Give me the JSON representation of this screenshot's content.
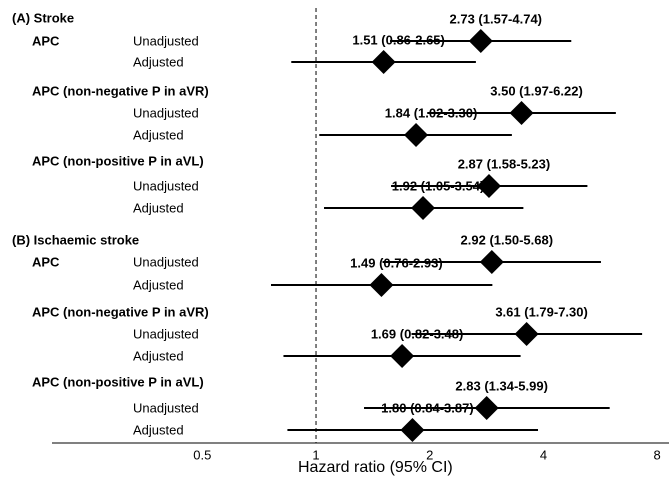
{
  "chart_data": {
    "type": "forest",
    "xlabel": "Hazard ratio (95% CI)",
    "xscale": "log",
    "xlim": [
      0.2,
      8.6
    ],
    "xticks": [
      0.5,
      1,
      2,
      4,
      8
    ],
    "reference": 1,
    "color": "#000000",
    "sections": [
      {
        "title": "(A) Stroke",
        "groups": [
          {
            "name": "APC",
            "rows": [
              {
                "label": "Unadjusted",
                "value": 2.73,
                "lo": 1.57,
                "hi": 4.74,
                "value_label": "2.73 (1.57-4.74)"
              },
              {
                "label": "Adjusted",
                "value": 1.51,
                "lo": 0.86,
                "hi": 2.65,
                "value_label": "1.51 (0.86-2.65)"
              }
            ]
          },
          {
            "name": "APC (non-negative P in aVR)",
            "rows": [
              {
                "label": "Unadjusted",
                "value": 3.5,
                "lo": 1.97,
                "hi": 6.22,
                "value_label": "3.50 (1.97-6.22)"
              },
              {
                "label": "Adjusted",
                "value": 1.84,
                "lo": 1.02,
                "hi": 3.3,
                "value_label": "1.84 (1.02-3.30)"
              }
            ]
          },
          {
            "name": "APC (non-positive P in aVL)",
            "rows": [
              {
                "label": "Unadjusted",
                "value": 2.87,
                "lo": 1.58,
                "hi": 5.23,
                "value_label": "2.87 (1.58-5.23)"
              },
              {
                "label": "Adjusted",
                "value": 1.92,
                "lo": 1.05,
                "hi": 3.54,
                "value_label": "1.92 (1.05-3.54)"
              }
            ]
          }
        ]
      },
      {
        "title": "(B) Ischaemic stroke",
        "groups": [
          {
            "name": "APC",
            "rows": [
              {
                "label": "Unadjusted",
                "value": 2.92,
                "lo": 1.5,
                "hi": 5.68,
                "value_label": "2.92 (1.50-5.68)"
              },
              {
                "label": "Adjusted",
                "value": 1.49,
                "lo": 0.76,
                "hi": 2.93,
                "value_label": "1.49 (0.76-2.93)"
              }
            ]
          },
          {
            "name": "APC (non-negative P in aVR)",
            "rows": [
              {
                "label": "Unadjusted",
                "value": 3.61,
                "lo": 1.79,
                "hi": 7.3,
                "value_label": "3.61 (1.79-7.30)"
              },
              {
                "label": "Adjusted",
                "value": 1.69,
                "lo": 0.82,
                "hi": 3.48,
                "value_label": "1.69 (0.82-3.48)"
              }
            ]
          },
          {
            "name": "APC (non-positive P in aVL)",
            "rows": [
              {
                "label": "Unadjusted",
                "value": 2.83,
                "lo": 1.34,
                "hi": 5.99,
                "value_label": "2.83 (1.34-5.99)"
              },
              {
                "label": "Adjusted",
                "value": 1.8,
                "lo": 0.84,
                "hi": 3.87,
                "value_label": "1.80 (0.84-3.87)"
              }
            ]
          }
        ]
      }
    ]
  }
}
